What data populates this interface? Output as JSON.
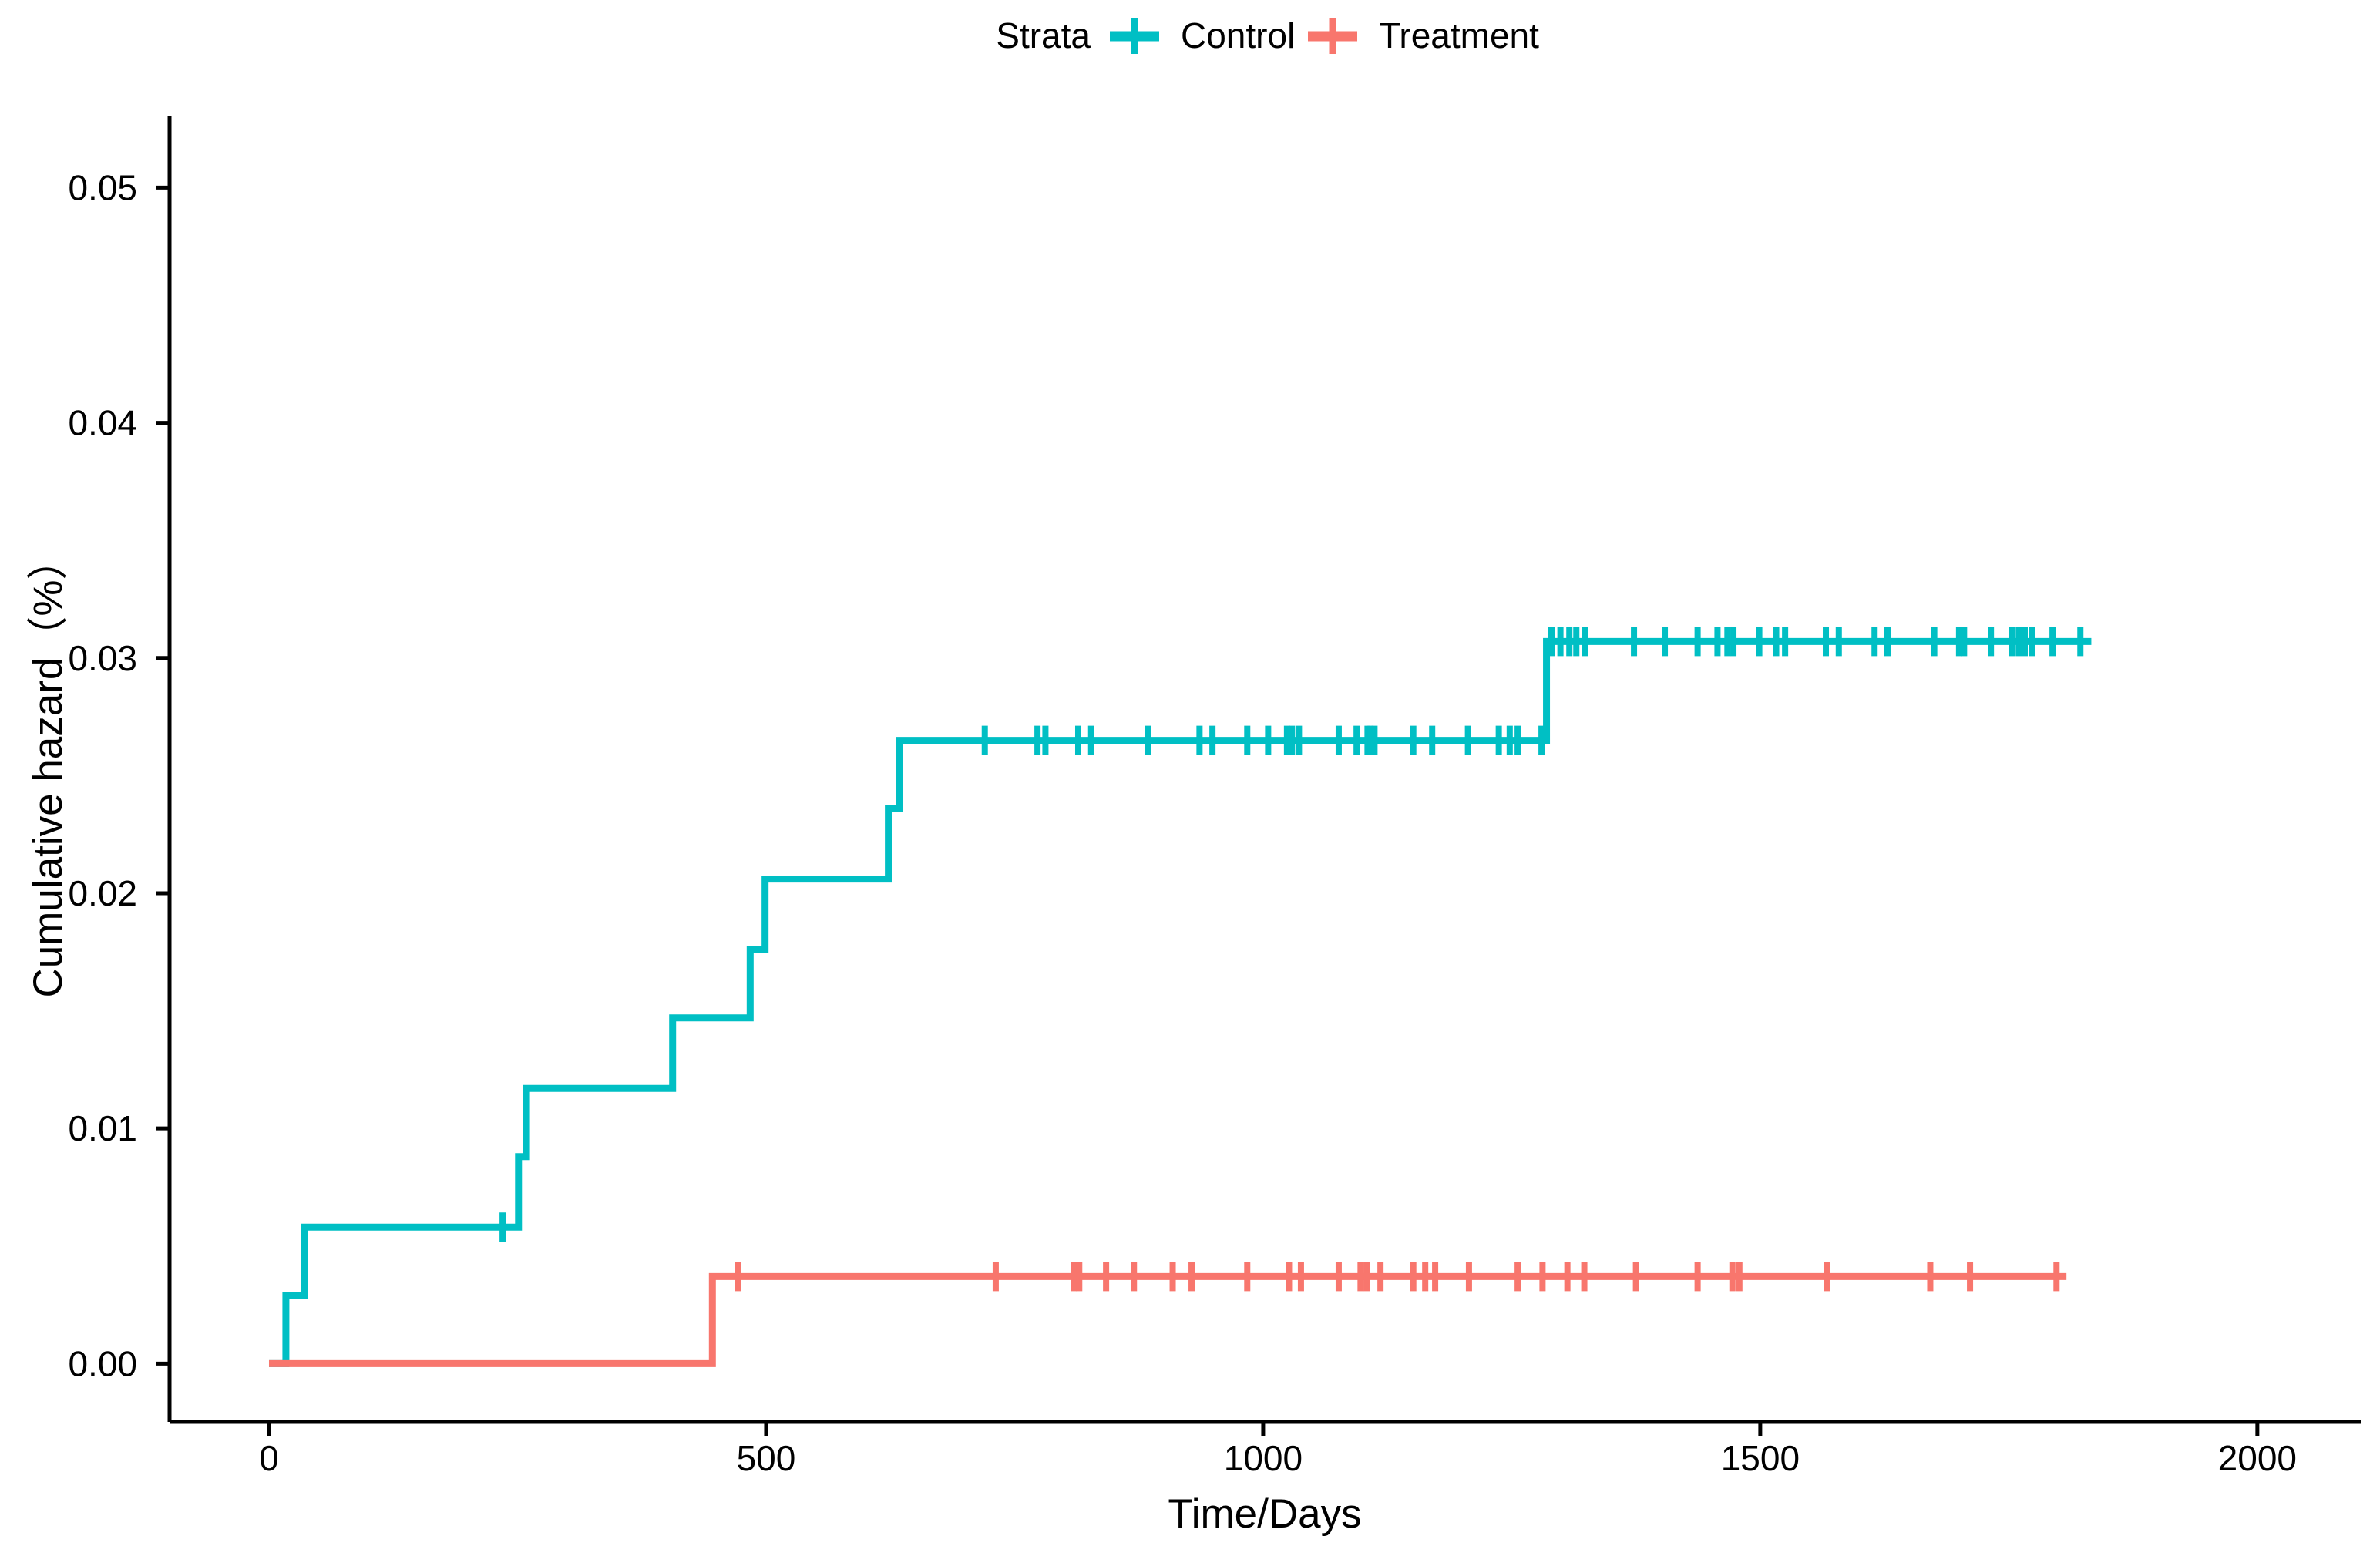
{
  "figure": {
    "background": "#FFFFFF",
    "axis_color": "#000000",
    "text_color": "#000000"
  },
  "chart_data": {
    "type": "line",
    "subtype": "step-function-cumulative-hazard",
    "title": "",
    "legend_title": "Strata",
    "legend_position": "top-center",
    "xlabel": "Time/Days",
    "ylabel": "Cumulative hazard（%）",
    "grid": false,
    "x_ticks": [
      0,
      500,
      1000,
      1500,
      2000
    ],
    "y_ticks": [
      "0.00",
      "0.01",
      "0.02",
      "0.03",
      "0.04",
      "0.05"
    ],
    "xlim": [
      -100,
      2104
    ],
    "ylim": [
      -0.00248,
      0.05306
    ],
    "series": [
      {
        "name": "Control",
        "color": "#00BFC4",
        "steps": [
          [
            0,
            0.0
          ],
          [
            17,
            0.0029
          ],
          [
            36,
            0.0058
          ],
          [
            251,
            0.0088
          ],
          [
            259,
            0.0117
          ],
          [
            406,
            0.0147
          ],
          [
            484,
            0.0176
          ],
          [
            499,
            0.0206
          ],
          [
            623,
            0.0236
          ],
          [
            634,
            0.0265
          ],
          [
            1285,
            0.0307
          ],
          [
            1833,
            0.0307
          ]
        ],
        "censor_marks": [
          [
            235,
            0.0058
          ],
          [
            720,
            0.0265
          ],
          [
            773,
            0.0265
          ],
          [
            781,
            0.0265
          ],
          [
            814,
            0.0265
          ],
          [
            827,
            0.0265
          ],
          [
            884,
            0.0265
          ],
          [
            936,
            0.0265
          ],
          [
            949,
            0.0265
          ],
          [
            984,
            0.0265
          ],
          [
            1005,
            0.0265
          ],
          [
            1024,
            0.0265
          ],
          [
            1029,
            0.0265
          ],
          [
            1036,
            0.0265
          ],
          [
            1076,
            0.0265
          ],
          [
            1094,
            0.0265
          ],
          [
            1105,
            0.0265
          ],
          [
            1108,
            0.0265
          ],
          [
            1112,
            0.0265
          ],
          [
            1151,
            0.0265
          ],
          [
            1170,
            0.0265
          ],
          [
            1206,
            0.0265
          ],
          [
            1237,
            0.0265
          ],
          [
            1248,
            0.0265
          ],
          [
            1256,
            0.0265
          ],
          [
            1280,
            0.0265
          ],
          [
            1290,
            0.0307
          ],
          [
            1299,
            0.0307
          ],
          [
            1308,
            0.0307
          ],
          [
            1315,
            0.0307
          ],
          [
            1324,
            0.0307
          ],
          [
            1373,
            0.0307
          ],
          [
            1404,
            0.0307
          ],
          [
            1437,
            0.0307
          ],
          [
            1457,
            0.0307
          ],
          [
            1467,
            0.0307
          ],
          [
            1473,
            0.0307
          ],
          [
            1499,
            0.0307
          ],
          [
            1516,
            0.0307
          ],
          [
            1525,
            0.0307
          ],
          [
            1566,
            0.0307
          ],
          [
            1579,
            0.0307
          ],
          [
            1615,
            0.0307
          ],
          [
            1628,
            0.0307
          ],
          [
            1675,
            0.0307
          ],
          [
            1700,
            0.0307
          ],
          [
            1705,
            0.0307
          ],
          [
            1732,
            0.0307
          ],
          [
            1753,
            0.0307
          ],
          [
            1760,
            0.0307
          ],
          [
            1766,
            0.0307
          ],
          [
            1773,
            0.0307
          ],
          [
            1794,
            0.0307
          ],
          [
            1822,
            0.0307
          ]
        ]
      },
      {
        "name": "Treatment",
        "color": "#F8766D",
        "steps": [
          [
            0,
            0.0
          ],
          [
            446,
            0.0037
          ],
          [
            1808,
            0.0037
          ]
        ],
        "censor_marks": [
          [
            472,
            0.0037
          ],
          [
            731,
            0.0037
          ],
          [
            810,
            0.0037
          ],
          [
            815,
            0.0037
          ],
          [
            842,
            0.0037
          ],
          [
            870,
            0.0037
          ],
          [
            909,
            0.0037
          ],
          [
            928,
            0.0037
          ],
          [
            984,
            0.0037
          ],
          [
            1026,
            0.0037
          ],
          [
            1038,
            0.0037
          ],
          [
            1076,
            0.0037
          ],
          [
            1098,
            0.0037
          ],
          [
            1104,
            0.0037
          ],
          [
            1118,
            0.0037
          ],
          [
            1151,
            0.0037
          ],
          [
            1163,
            0.0037
          ],
          [
            1173,
            0.0037
          ],
          [
            1207,
            0.0037
          ],
          [
            1256,
            0.0037
          ],
          [
            1281,
            0.0037
          ],
          [
            1306,
            0.0037
          ],
          [
            1323,
            0.0037
          ],
          [
            1375,
            0.0037
          ],
          [
            1437,
            0.0037
          ],
          [
            1472,
            0.0037
          ],
          [
            1479,
            0.0037
          ],
          [
            1567,
            0.0037
          ],
          [
            1671,
            0.0037
          ],
          [
            1711,
            0.0037
          ],
          [
            1798,
            0.0037
          ]
        ]
      }
    ]
  }
}
